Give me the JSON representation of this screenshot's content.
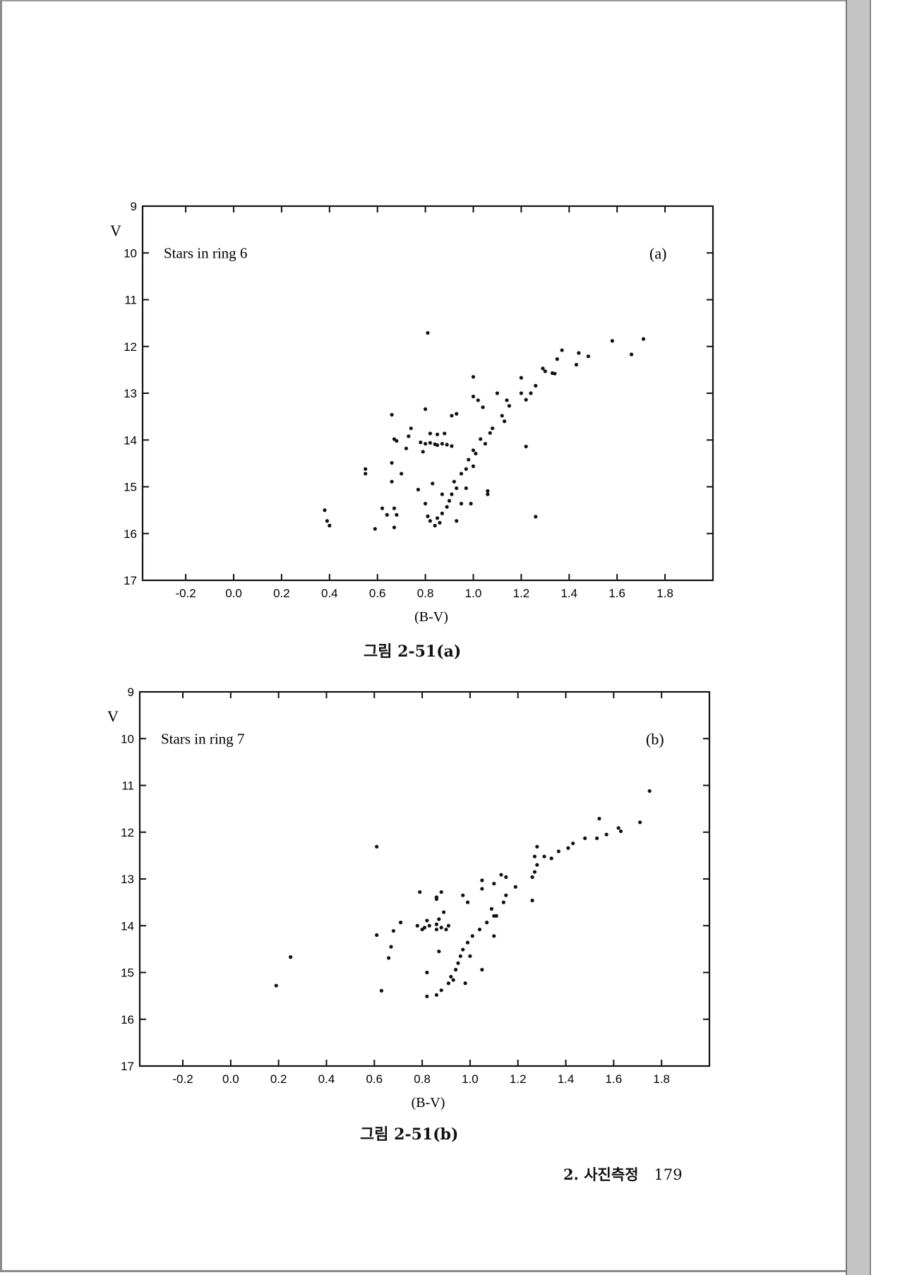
{
  "chart_data": [
    {
      "type": "scatter",
      "panel": "(a)",
      "title": "Stars in ring 6",
      "xlabel": "(B-V)",
      "ylabel": "V",
      "xlim": [
        -0.38,
        2.0
      ],
      "ylim": [
        17,
        9
      ],
      "y_inverted": true,
      "xticks": [
        "-0.2",
        "0.0",
        "0.2",
        "0.4",
        "0.6",
        "0.8",
        "1.0",
        "1.2",
        "1.4",
        "1.6",
        "1.8"
      ],
      "yticks": [
        "9",
        "10",
        "11",
        "12",
        "13",
        "14",
        "15",
        "16",
        "17"
      ],
      "grid": false,
      "caption": "그림 2-51(a)",
      "points": [
        [
          0.81,
          11.71
        ],
        [
          1.58,
          11.88
        ],
        [
          1.71,
          11.84
        ],
        [
          1.66,
          12.17
        ],
        [
          1.44,
          12.14
        ],
        [
          1.48,
          12.21
        ],
        [
          1.43,
          12.39
        ],
        [
          1.35,
          12.27
        ],
        [
          1.37,
          12.08
        ],
        [
          1.29,
          12.47
        ],
        [
          1.3,
          12.53
        ],
        [
          1.33,
          12.57
        ],
        [
          1.34,
          12.58
        ],
        [
          1.26,
          12.84
        ],
        [
          1.24,
          13.0
        ],
        [
          1.2,
          12.67
        ],
        [
          1.2,
          13.0
        ],
        [
          1.22,
          13.14
        ],
        [
          1.14,
          13.15
        ],
        [
          1.15,
          13.27
        ],
        [
          1.1,
          13.0
        ],
        [
          1.0,
          12.65
        ],
        [
          1.0,
          13.07
        ],
        [
          1.02,
          13.15
        ],
        [
          1.04,
          13.3
        ],
        [
          1.12,
          13.48
        ],
        [
          1.13,
          13.6
        ],
        [
          1.08,
          13.75
        ],
        [
          1.07,
          13.85
        ],
        [
          1.03,
          13.98
        ],
        [
          1.05,
          14.08
        ],
        [
          1.0,
          14.22
        ],
        [
          1.01,
          14.29
        ],
        [
          0.98,
          14.42
        ],
        [
          1.0,
          14.56
        ],
        [
          0.97,
          14.62
        ],
        [
          0.95,
          14.72
        ],
        [
          0.92,
          14.89
        ],
        [
          0.93,
          15.03
        ],
        [
          0.91,
          15.16
        ],
        [
          0.9,
          15.3
        ],
        [
          0.89,
          15.43
        ],
        [
          0.87,
          15.57
        ],
        [
          0.85,
          15.67
        ],
        [
          0.82,
          15.73
        ],
        [
          0.86,
          15.77
        ],
        [
          0.84,
          15.83
        ],
        [
          0.81,
          15.63
        ],
        [
          0.93,
          15.73
        ],
        [
          0.95,
          15.36
        ],
        [
          0.97,
          15.03
        ],
        [
          0.99,
          15.36
        ],
        [
          0.83,
          14.93
        ],
        [
          0.77,
          15.06
        ],
        [
          0.87,
          15.16
        ],
        [
          0.8,
          15.36
        ],
        [
          1.06,
          15.09
        ],
        [
          1.06,
          15.16
        ],
        [
          1.22,
          14.14
        ],
        [
          1.26,
          15.64
        ],
        [
          0.8,
          13.34
        ],
        [
          0.91,
          13.48
        ],
        [
          0.93,
          13.44
        ],
        [
          0.66,
          13.46
        ],
        [
          0.67,
          13.98
        ],
        [
          0.68,
          14.02
        ],
        [
          0.74,
          13.75
        ],
        [
          0.73,
          13.92
        ],
        [
          0.78,
          14.05
        ],
        [
          0.8,
          14.08
        ],
        [
          0.82,
          14.06
        ],
        [
          0.84,
          14.09
        ],
        [
          0.85,
          14.11
        ],
        [
          0.87,
          14.08
        ],
        [
          0.89,
          14.1
        ],
        [
          0.91,
          14.13
        ],
        [
          0.82,
          13.86
        ],
        [
          0.85,
          13.88
        ],
        [
          0.88,
          13.86
        ],
        [
          0.72,
          14.18
        ],
        [
          0.79,
          14.25
        ],
        [
          0.66,
          14.49
        ],
        [
          0.55,
          14.62
        ],
        [
          0.55,
          14.72
        ],
        [
          0.7,
          14.72
        ],
        [
          0.66,
          14.89
        ],
        [
          0.38,
          15.5
        ],
        [
          0.39,
          15.73
        ],
        [
          0.4,
          15.83
        ],
        [
          0.59,
          15.9
        ],
        [
          0.62,
          15.46
        ],
        [
          0.64,
          15.6
        ],
        [
          0.67,
          15.46
        ],
        [
          0.68,
          15.6
        ],
        [
          0.67,
          15.87
        ]
      ]
    },
    {
      "type": "scatter",
      "panel": "(b)",
      "title": "Stars in ring 7",
      "xlabel": "(B-V)",
      "ylabel": "V",
      "xlim": [
        -0.38,
        2.0
      ],
      "ylim": [
        17,
        9
      ],
      "y_inverted": true,
      "xticks": [
        "-0.2",
        "0.0",
        "0.2",
        "0.4",
        "0.6",
        "0.8",
        "1.0",
        "1.2",
        "1.4",
        "1.6",
        "1.8"
      ],
      "yticks": [
        "9",
        "10",
        "11",
        "12",
        "13",
        "14",
        "15",
        "16",
        "17"
      ],
      "grid": false,
      "caption": "그림 2-51(b)",
      "points": [
        [
          1.75,
          11.12
        ],
        [
          1.71,
          11.79
        ],
        [
          1.54,
          11.71
        ],
        [
          1.62,
          11.91
        ],
        [
          1.63,
          11.98
        ],
        [
          1.57,
          12.05
        ],
        [
          1.53,
          12.13
        ],
        [
          1.48,
          12.13
        ],
        [
          1.43,
          12.24
        ],
        [
          1.41,
          12.34
        ],
        [
          1.37,
          12.41
        ],
        [
          1.34,
          12.56
        ],
        [
          1.31,
          12.52
        ],
        [
          1.28,
          12.31
        ],
        [
          1.27,
          12.52
        ],
        [
          1.28,
          12.7
        ],
        [
          1.27,
          12.85
        ],
        [
          1.26,
          12.96
        ],
        [
          1.19,
          13.17
        ],
        [
          1.15,
          13.35
        ],
        [
          1.14,
          13.5
        ],
        [
          1.13,
          12.91
        ],
        [
          1.15,
          12.96
        ],
        [
          1.1,
          13.1
        ],
        [
          1.05,
          13.03
        ],
        [
          1.05,
          13.21
        ],
        [
          0.97,
          13.35
        ],
        [
          0.99,
          13.5
        ],
        [
          1.26,
          13.46
        ],
        [
          1.09,
          13.64
        ],
        [
          1.1,
          13.79
        ],
        [
          1.07,
          13.93
        ],
        [
          1.04,
          14.08
        ],
        [
          1.01,
          14.22
        ],
        [
          0.99,
          14.36
        ],
        [
          0.97,
          14.51
        ],
        [
          0.96,
          14.65
        ],
        [
          0.95,
          14.8
        ],
        [
          0.94,
          14.94
        ],
        [
          0.92,
          15.09
        ],
        [
          0.91,
          15.23
        ],
        [
          0.88,
          15.38
        ],
        [
          0.86,
          15.48
        ],
        [
          0.82,
          15.51
        ],
        [
          0.93,
          15.16
        ],
        [
          0.98,
          15.23
        ],
        [
          1.0,
          14.65
        ],
        [
          1.05,
          14.94
        ],
        [
          1.1,
          14.22
        ],
        [
          1.11,
          13.79
        ],
        [
          0.82,
          15.0
        ],
        [
          0.87,
          14.55
        ],
        [
          0.79,
          13.28
        ],
        [
          0.88,
          13.28
        ],
        [
          0.86,
          13.39
        ],
        [
          0.86,
          13.43
        ],
        [
          0.89,
          13.71
        ],
        [
          0.78,
          14.0
        ],
        [
          0.81,
          14.04
        ],
        [
          0.83,
          14.0
        ],
        [
          0.86,
          13.97
        ],
        [
          0.88,
          14.04
        ],
        [
          0.9,
          14.08
        ],
        [
          0.82,
          13.89
        ],
        [
          0.87,
          13.86
        ],
        [
          0.8,
          14.08
        ],
        [
          0.91,
          14.0
        ],
        [
          0.86,
          14.08
        ],
        [
          0.71,
          13.93
        ],
        [
          0.68,
          14.11
        ],
        [
          0.61,
          14.2
        ],
        [
          0.61,
          12.31
        ],
        [
          0.67,
          14.45
        ],
        [
          0.66,
          14.69
        ],
        [
          0.63,
          15.39
        ],
        [
          0.25,
          14.67
        ],
        [
          0.19,
          15.28
        ]
      ]
    }
  ],
  "footer": {
    "section": "2. 사진측정",
    "page_number": "179"
  }
}
